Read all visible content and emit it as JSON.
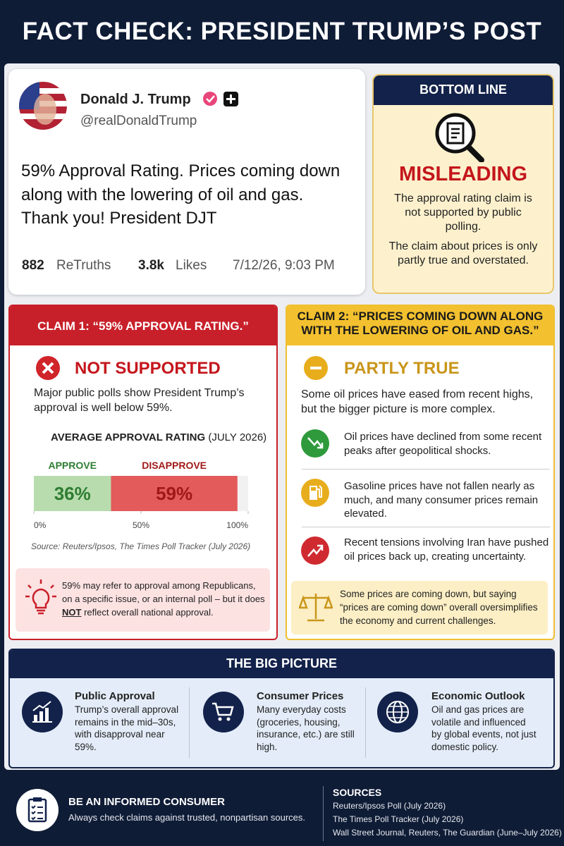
{
  "title": "FACT CHECK: PRESIDENT TRUMP’S POST",
  "post": {
    "name": "Donald J. Trump",
    "handle": "@realDonaldTrump",
    "text": "59% Approval Rating. Prices coming down along with the lowering of oil and gas. Thank you! President DJT",
    "retruths": "882",
    "retruths_label": "ReTruths",
    "likes": "3.8k",
    "likes_label": "Likes",
    "timestamp": "7/12/26, 9:03 PM"
  },
  "bottom_line": {
    "header": "BOTTOM LINE",
    "verdict": "MISLEADING",
    "paragraphs": [
      "The approval rating claim is not supported by public polling.",
      "The claim about prices is only partly true and overstated."
    ]
  },
  "claim1": {
    "header": "CLAIM 1: “59% APPROVAL RATING.”",
    "verdict": "NOT SUPPORTED",
    "text": "Major public polls show President Trump’s approval is well below 59%.",
    "chart": {
      "type": "bar",
      "title": "AVERAGE APPROVAL RATING",
      "subtitle": "(JULY 2026)",
      "stacked": true,
      "series": [
        {
          "name": "APPROVE",
          "color": "#b8dcae",
          "values": [
            36
          ],
          "value_labels": [
            "36%"
          ]
        },
        {
          "name": "DISAPPROVE",
          "color": "#e35b5b",
          "values": [
            59
          ],
          "value_labels": [
            "59%"
          ]
        }
      ],
      "xlim": [
        0,
        100
      ],
      "xticks": [
        {
          "value": 0,
          "label": "0%"
        },
        {
          "value": 50,
          "label": "50%"
        },
        {
          "value": 100,
          "label": "100%"
        }
      ]
    },
    "source": "Source: Reuters/Ipsos, The Times Poll Tracker (July 2026)",
    "note": [
      "59% may refer to approval among Republicans, on a specific issue, or an internal poll – but it does ",
      "NOT",
      " reflect overall national approval."
    ]
  },
  "claim2": {
    "header": "CLAIM 2: “PRICES COMING DOWN ALONG WITH THE LOWERING OF OIL AND GAS.”",
    "verdict": "PARTLY TRUE",
    "text": "Some oil prices have eased from recent highs, but the bigger picture is more complex.",
    "items": [
      "Oil prices have declined from some recent peaks after geopolitical shocks.",
      "Gasoline prices have not fallen nearly as much, and many consumer prices remain elevated.",
      "Recent tensions involving Iran have pushed oil prices back up, creating uncertainty."
    ],
    "note": "Some prices are coming down, but saying “prices are coming down” overall oversimplifies the economy and current challenges."
  },
  "big_picture": {
    "header": "THE BIG PICTURE",
    "items": [
      {
        "title": "Public Approval",
        "text": "Trump’s overall approval remains in the mid–30s, with disapproval near 59%."
      },
      {
        "title": "Consumer Prices",
        "text": "Many everyday costs (groceries, housing, insurance, etc.) are still high."
      },
      {
        "title": "Economic Outlook",
        "text": "Oil and gas prices are volatile and influenced by global events, not just domestic policy."
      }
    ]
  },
  "footer": {
    "title": "BE AN INFORMED CONSUMER",
    "text": "Always check claims against trusted, nonpartisan sources.",
    "sources_header": "SOURCES",
    "sources": [
      "Reuters/Ipsos Poll (July 2026)",
      "The Times Poll Tracker (July 2026)",
      "Wall Street Journal, Reuters, The Guardian (June–July 2026)"
    ]
  }
}
